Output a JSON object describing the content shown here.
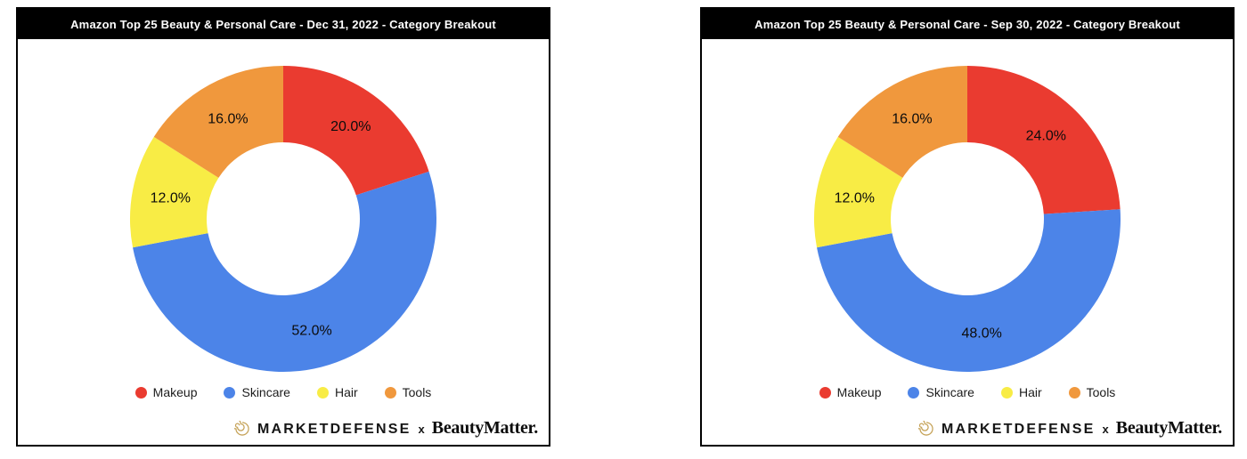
{
  "footer": {
    "brand_left": "MARKETDEFENSE",
    "separator": "x",
    "brand_right": "BeautyMatter.",
    "logo_color": "#C5A257"
  },
  "colors": {
    "makeup_red": "#EA3B30",
    "skincare_blue": "#4C84E8",
    "hair_yellow": "#F8EC45",
    "tools_orange": "#F0983D",
    "panel_border": "#000000",
    "title_bar_bg": "#000000",
    "title_text": "#FFFFFF"
  },
  "chart_data": [
    {
      "type": "pie",
      "subtype": "donut",
      "title": "Amazon Top 25 Beauty & Personal Care - Dec 31, 2022 - Category Breakout",
      "categories": [
        "Makeup",
        "Skincare",
        "Hair",
        "Tools"
      ],
      "values": [
        20.0,
        52.0,
        12.0,
        16.0
      ],
      "labels": [
        "20.0%",
        "52.0%",
        "12.0%",
        "16.0%"
      ],
      "colors": [
        "#EA3B30",
        "#4C84E8",
        "#F8EC45",
        "#F0983D"
      ],
      "legend_position": "bottom",
      "start_angle_deg": 0,
      "direction": "clockwise",
      "donut_hole_ratio": 0.5
    },
    {
      "type": "pie",
      "subtype": "donut",
      "title": "Amazon Top 25 Beauty & Personal Care - Sep 30, 2022 - Category Breakout",
      "categories": [
        "Makeup",
        "Skincare",
        "Hair",
        "Tools"
      ],
      "values": [
        24.0,
        48.0,
        12.0,
        16.0
      ],
      "labels": [
        "24.0%",
        "48.0%",
        "12.0%",
        "16.0%"
      ],
      "colors": [
        "#EA3B30",
        "#4C84E8",
        "#F8EC45",
        "#F0983D"
      ],
      "legend_position": "bottom",
      "start_angle_deg": 0,
      "direction": "clockwise",
      "donut_hole_ratio": 0.5
    }
  ]
}
